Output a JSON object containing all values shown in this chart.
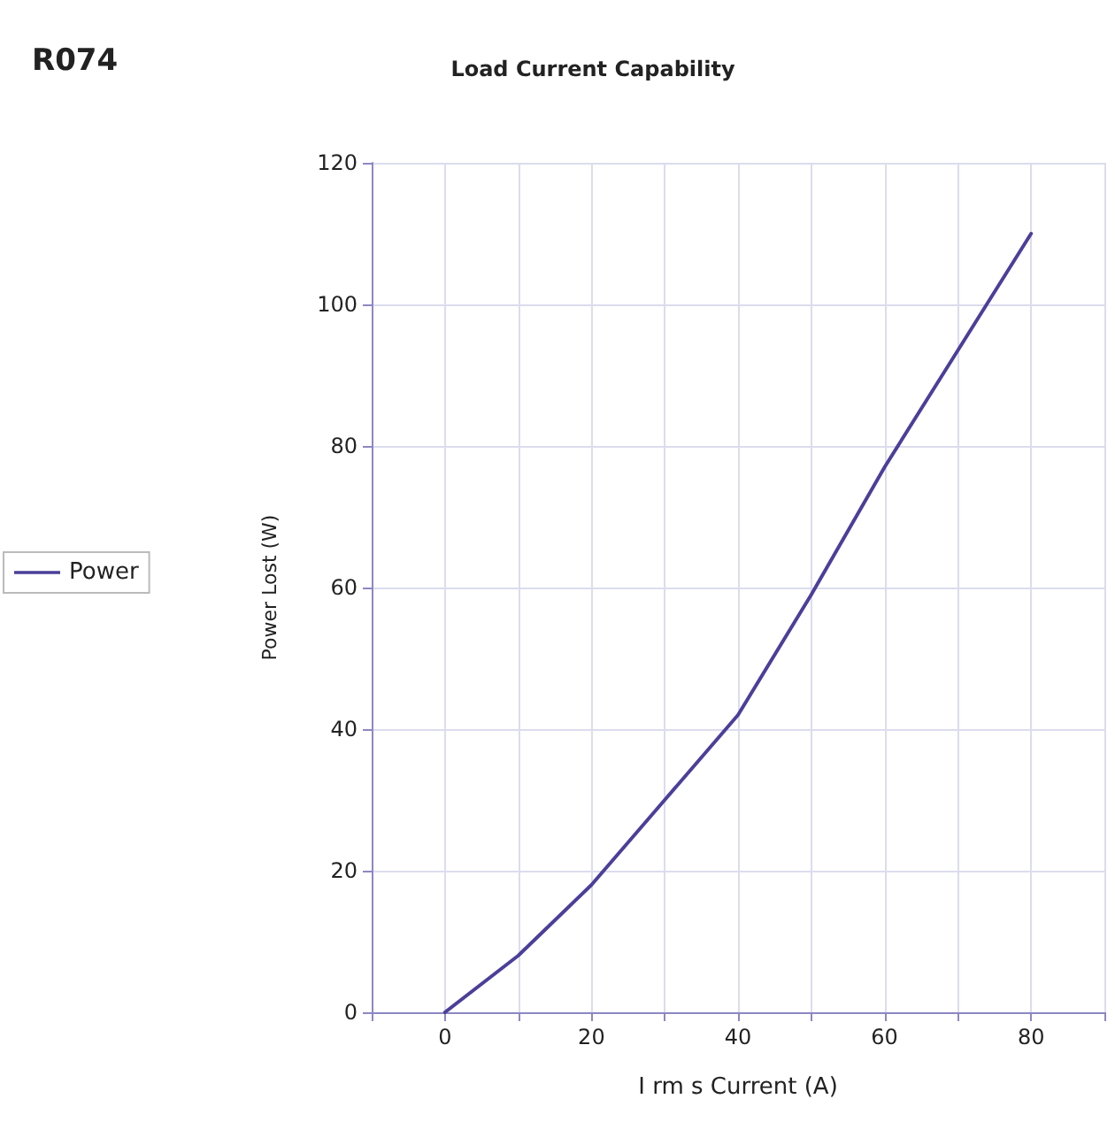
{
  "chart_data": {
    "type": "line",
    "title": "Load Current Capability",
    "annotations": [
      "R074"
    ],
    "xlabel": "I rm s Current (A)",
    "ylabel": "Power Lost (W)",
    "x": [
      0,
      10,
      15,
      20,
      30,
      40,
      50,
      60,
      70,
      80
    ],
    "series": [
      {
        "name": "Power",
        "color": "#4b3f9a",
        "values": [
          0,
          8,
          13,
          18,
          30,
          42,
          59,
          77,
          93.5,
          110
        ]
      }
    ],
    "xlim": [
      -10,
      90
    ],
    "xticks": [
      {
        "value": -10,
        "label": null
      },
      0,
      {
        "value": 10,
        "label": null
      },
      20,
      {
        "value": 30,
        "label": null
      },
      40,
      {
        "value": 50,
        "label": null
      },
      60,
      {
        "value": 70,
        "label": null
      },
      80,
      {
        "value": 90,
        "label": null
      }
    ],
    "ylim": [
      0,
      120
    ],
    "yticks": [
      0,
      20,
      40,
      60,
      80,
      100,
      120
    ],
    "grid": true,
    "legend": "left",
    "marker": "none",
    "line_style": "solid"
  }
}
